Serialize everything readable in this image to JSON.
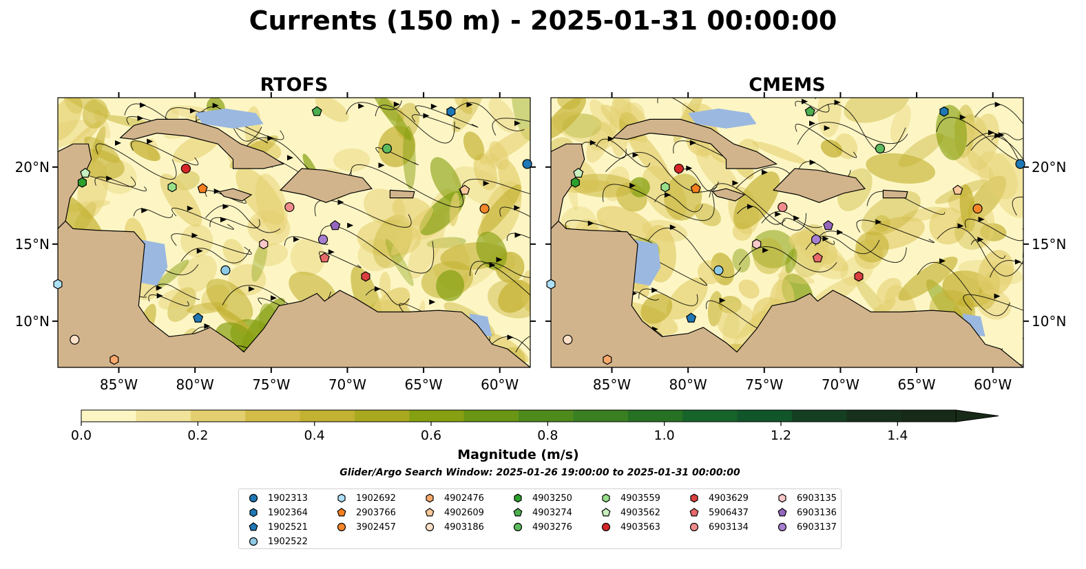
{
  "title": "Currents (150 m) - 2025-01-31 00:00:00",
  "chart_data": [
    {
      "type": "heatmap",
      "title": "RTOFS",
      "x_ticks": [
        "85°W",
        "80°W",
        "75°W",
        "70°W",
        "65°W",
        "60°W"
      ],
      "y_ticks": [
        "10°N",
        "15°N",
        "20°N"
      ],
      "lon_range": [
        -89,
        -58
      ],
      "lat_range": [
        7,
        24.5
      ],
      "floats": [
        {
          "id": "1902313",
          "lon": -58.2,
          "lat": 20.2
        },
        {
          "id": "1902364",
          "lon": -63.2,
          "lat": 23.6
        },
        {
          "id": "1902521",
          "lon": -79.8,
          "lat": 10.2
        },
        {
          "id": "1902522",
          "lon": -78.0,
          "lat": 13.3
        },
        {
          "id": "1902692",
          "lon": -89.0,
          "lat": 12.4
        },
        {
          "id": "2903766",
          "lon": -79.5,
          "lat": 18.6
        },
        {
          "id": "3902457",
          "lon": -61.0,
          "lat": 17.3
        },
        {
          "id": "4902476",
          "lon": -85.3,
          "lat": 7.5
        },
        {
          "id": "4902609",
          "lon": -62.3,
          "lat": 18.5
        },
        {
          "id": "4903186",
          "lon": -87.9,
          "lat": 8.8
        },
        {
          "id": "4903250",
          "lon": -87.4,
          "lat": 19.0
        },
        {
          "id": "4903274",
          "lon": -72.0,
          "lat": 23.6
        },
        {
          "id": "4903276",
          "lon": -67.4,
          "lat": 21.2
        },
        {
          "id": "4903559",
          "lon": -81.5,
          "lat": 18.7
        },
        {
          "id": "4903562",
          "lon": -87.2,
          "lat": 19.6
        },
        {
          "id": "4903563",
          "lon": -80.6,
          "lat": 19.9
        },
        {
          "id": "4903629",
          "lon": -68.8,
          "lat": 12.9
        },
        {
          "id": "5906437",
          "lon": -71.5,
          "lat": 14.1
        },
        {
          "id": "6903134",
          "lon": -73.8,
          "lat": 17.4
        },
        {
          "id": "6903135",
          "lon": -75.5,
          "lat": 15.0
        },
        {
          "id": "6903136",
          "lon": -70.8,
          "lat": 16.2
        },
        {
          "id": "6903137",
          "lon": -71.6,
          "lat": 15.3
        }
      ]
    },
    {
      "type": "heatmap",
      "title": "CMEMS",
      "x_ticks": [
        "85°W",
        "80°W",
        "75°W",
        "70°W",
        "65°W",
        "60°W"
      ],
      "y_ticks": [
        "10°N",
        "15°N",
        "20°N"
      ],
      "lon_range": [
        -89,
        -58
      ],
      "lat_range": [
        7,
        24.5
      ],
      "floats": [
        {
          "id": "1902313",
          "lon": -58.2,
          "lat": 20.2
        },
        {
          "id": "1902364",
          "lon": -63.2,
          "lat": 23.6
        },
        {
          "id": "1902521",
          "lon": -79.8,
          "lat": 10.2
        },
        {
          "id": "1902522",
          "lon": -78.0,
          "lat": 13.3
        },
        {
          "id": "1902692",
          "lon": -89.0,
          "lat": 12.4
        },
        {
          "id": "2903766",
          "lon": -79.5,
          "lat": 18.6
        },
        {
          "id": "3902457",
          "lon": -61.0,
          "lat": 17.3
        },
        {
          "id": "4902476",
          "lon": -85.3,
          "lat": 7.5
        },
        {
          "id": "4902609",
          "lon": -62.3,
          "lat": 18.5
        },
        {
          "id": "4903186",
          "lon": -87.9,
          "lat": 8.8
        },
        {
          "id": "4903250",
          "lon": -87.4,
          "lat": 19.0
        },
        {
          "id": "4903274",
          "lon": -72.0,
          "lat": 23.6
        },
        {
          "id": "4903276",
          "lon": -67.4,
          "lat": 21.2
        },
        {
          "id": "4903559",
          "lon": -81.5,
          "lat": 18.7
        },
        {
          "id": "4903562",
          "lon": -87.2,
          "lat": 19.6
        },
        {
          "id": "4903563",
          "lon": -80.6,
          "lat": 19.9
        },
        {
          "id": "4903629",
          "lon": -68.8,
          "lat": 12.9
        },
        {
          "id": "5906437",
          "lon": -71.5,
          "lat": 14.1
        },
        {
          "id": "6903134",
          "lon": -73.8,
          "lat": 17.4
        },
        {
          "id": "6903135",
          "lon": -75.5,
          "lat": 15.0
        },
        {
          "id": "6903136",
          "lon": -70.8,
          "lat": 16.2
        },
        {
          "id": "6903137",
          "lon": -71.6,
          "lat": 15.3
        }
      ]
    }
  ],
  "colorbar": {
    "label": "Magnitude (m/s)",
    "ticks": [
      "0.0",
      "0.2",
      "0.4",
      "0.6",
      "0.8",
      "1.0",
      "1.2",
      "1.4"
    ],
    "range": [
      0,
      1.5
    ],
    "colors": [
      "#fdf6c4",
      "#f1e39a",
      "#e3cf6f",
      "#d4bc48",
      "#c3b132",
      "#a9a91f",
      "#86a012",
      "#6a9515",
      "#4f8a1c",
      "#3a7f22",
      "#277124",
      "#17642a",
      "#11552a",
      "#153f22",
      "#17301c",
      "#182a18"
    ]
  },
  "search_window": "Glider/Argo Search Window: 2025-01-26 19:00:00 to 2025-01-31 00:00:00",
  "legend": [
    {
      "label": "1902313",
      "marker": "circle",
      "color": "#1f77b4"
    },
    {
      "label": "1902364",
      "marker": "hexagon",
      "color": "#1f77b4"
    },
    {
      "label": "1902521",
      "marker": "pentagon",
      "color": "#1f77b4"
    },
    {
      "label": "1902522",
      "marker": "circle",
      "color": "#8ecae6"
    },
    {
      "label": "1902692",
      "marker": "hexagon",
      "color": "#aee1f7"
    },
    {
      "label": "2903766",
      "marker": "pentagon",
      "color": "#f57f20"
    },
    {
      "label": "3902457",
      "marker": "circle",
      "color": "#f5862a"
    },
    {
      "label": "4902476",
      "marker": "hexagon",
      "color": "#f8a96b"
    },
    {
      "label": "4902609",
      "marker": "pentagon",
      "color": "#fcc99c"
    },
    {
      "label": "4903186",
      "marker": "circle",
      "color": "#fde0c8"
    },
    {
      "label": "4903250",
      "marker": "hexagon",
      "color": "#2ca02c"
    },
    {
      "label": "4903274",
      "marker": "pentagon",
      "color": "#4caf50"
    },
    {
      "label": "4903276",
      "marker": "circle",
      "color": "#5dbb5d"
    },
    {
      "label": "4903559",
      "marker": "hexagon",
      "color": "#98df8a"
    },
    {
      "label": "4903562",
      "marker": "pentagon",
      "color": "#c7efbf"
    },
    {
      "label": "4903563",
      "marker": "circle",
      "color": "#d62728"
    },
    {
      "label": "4903629",
      "marker": "hexagon",
      "color": "#d9403f"
    },
    {
      "label": "5906437",
      "marker": "pentagon",
      "color": "#e8696a"
    },
    {
      "label": "6903134",
      "marker": "circle",
      "color": "#f08c8c"
    },
    {
      "label": "6903135",
      "marker": "hexagon",
      "color": "#f9c8c8"
    },
    {
      "label": "6903136",
      "marker": "pentagon",
      "color": "#9467bd"
    },
    {
      "label": "6903137",
      "marker": "circle",
      "color": "#a77fd0"
    }
  ],
  "map_colors": {
    "ocean_low": "#fdf6c4",
    "ocean_mid": "#e3cf6f",
    "ocean_high": "#86a012",
    "land": "#d2b48c",
    "shallow": "#9bb8e0",
    "line": "#000000"
  }
}
